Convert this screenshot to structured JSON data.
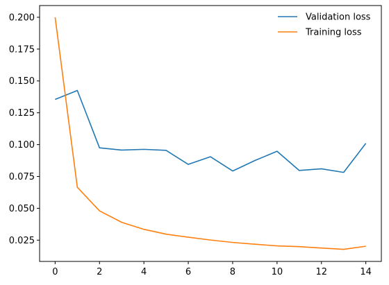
{
  "chart_data": {
    "type": "line",
    "title": "",
    "xlabel": "",
    "ylabel": "",
    "x": [
      0,
      1,
      2,
      3,
      4,
      5,
      6,
      7,
      8,
      9,
      10,
      11,
      12,
      13,
      14
    ],
    "xlim": [
      -0.7,
      14.7
    ],
    "ylim": [
      0.0083,
      0.2092
    ],
    "x_ticks": [
      0,
      2,
      4,
      6,
      8,
      10,
      12,
      14
    ],
    "x_tick_labels": [
      "0",
      "2",
      "4",
      "6",
      "8",
      "10",
      "12",
      "14"
    ],
    "y_ticks": [
      0.025,
      0.05,
      0.075,
      0.1,
      0.125,
      0.15,
      0.175,
      0.2
    ],
    "y_tick_labels": [
      "0.025",
      "0.050",
      "0.075",
      "0.100",
      "0.125",
      "0.150",
      "0.175",
      "0.200"
    ],
    "grid": false,
    "legend_position": "top-right",
    "series": [
      {
        "name": "Validation loss",
        "color": "#1f77b4",
        "values": [
          0.1355,
          0.1425,
          0.0975,
          0.0957,
          0.0963,
          0.0955,
          0.0845,
          0.0905,
          0.0793,
          0.0875,
          0.0948,
          0.0797,
          0.081,
          0.0782,
          0.101
        ]
      },
      {
        "name": "Training loss",
        "color": "#ff7f0e",
        "values": [
          0.2,
          0.0665,
          0.048,
          0.039,
          0.0335,
          0.0297,
          0.0273,
          0.0251,
          0.0232,
          0.0218,
          0.0205,
          0.0199,
          0.0188,
          0.0178,
          0.0202
        ]
      }
    ]
  }
}
